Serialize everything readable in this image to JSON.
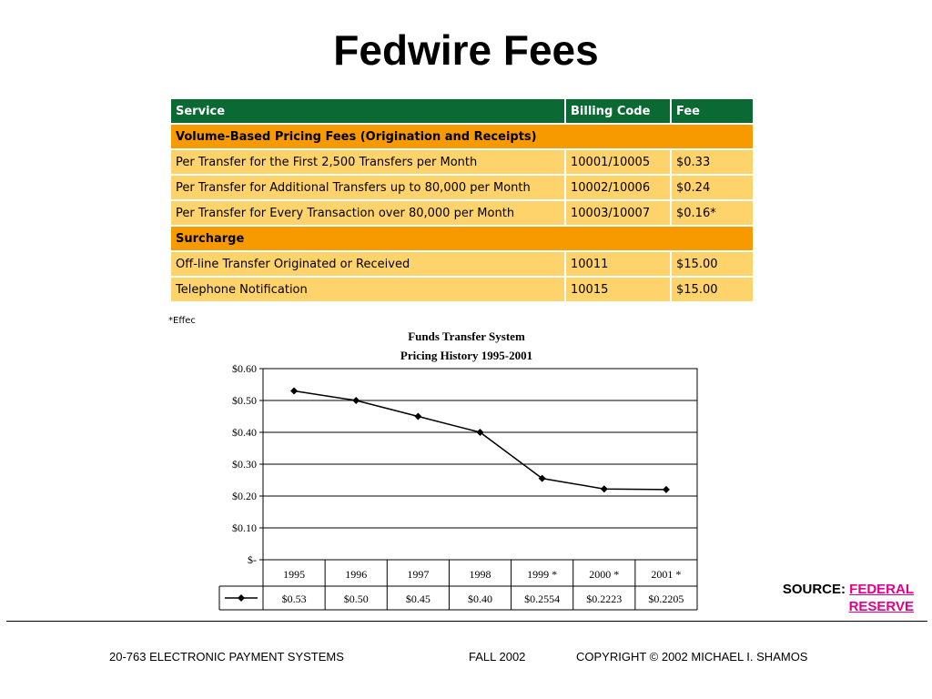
{
  "page": {
    "title": "Fedwire Fees"
  },
  "table": {
    "headers": [
      "Service",
      "Billing Code",
      "Fee"
    ],
    "sections": [
      {
        "name": "Volume-Based Pricing Fees (Origination and Receipts)",
        "rows": [
          [
            "Per Transfer for the First 2,500 Transfers per Month",
            "10001/10005",
            "$0.33"
          ],
          [
            "Per Transfer for Additional Transfers up to 80,000 per Month",
            "10002/10006",
            "$0.24"
          ],
          [
            "Per Transfer for Every Transaction over 80,000 per Month",
            "10003/10007",
            "$0.16*"
          ]
        ]
      },
      {
        "name": "Surcharge",
        "rows": [
          [
            "Off-line Transfer Originated or Received",
            "10011",
            "$15.00"
          ],
          [
            "Telephone Notification",
            "10015",
            "$15.00"
          ]
        ]
      }
    ],
    "footnote": "*Effec"
  },
  "chart_data": {
    "type": "line",
    "title": "Funds Transfer System",
    "subtitle": "Pricing History 1995-2001",
    "categories": [
      "1995",
      "1996",
      "1997",
      "1998",
      "1999 *",
      "2000 *",
      "2001 *"
    ],
    "series": [
      {
        "values": [
          0.53,
          0.5,
          0.45,
          0.4,
          0.2554,
          0.2223,
          0.2205
        ]
      }
    ],
    "value_labels": [
      "$0.53",
      "$0.50",
      "$0.45",
      "$0.40",
      "$0.2554",
      "$0.2223",
      "$0.2205"
    ],
    "y_ticks": [
      "$0.60",
      "$0.50",
      "$0.40",
      "$0.30",
      "$0.20",
      "$0.10",
      "$-"
    ],
    "ylim": [
      0,
      0.6
    ],
    "grid": true,
    "legend": "data table below chart"
  },
  "source": {
    "label": "SOURCE:",
    "link_line1": "FEDERAL",
    "link_line2": "RESERVE"
  },
  "footer": {
    "course": "20-763 ELECTRONIC PAYMENT SYSTEMS",
    "term": "FALL 2002",
    "copyright": "COPYRIGHT © 2002 MICHAEL I. SHAMOS"
  }
}
